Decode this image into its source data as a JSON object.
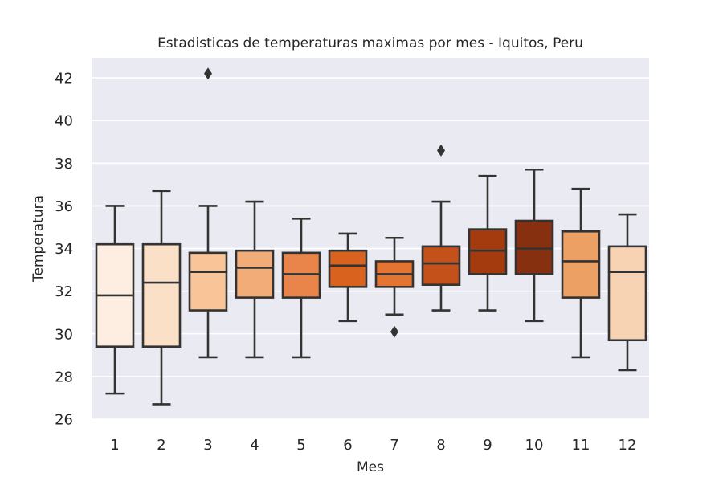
{
  "chart_data": {
    "type": "box",
    "title": "Estadisticas de temperaturas maximas por mes - Iquitos, Peru",
    "xlabel": "Mes",
    "ylabel": "Temperatura",
    "categories": [
      "1",
      "2",
      "3",
      "4",
      "5",
      "6",
      "7",
      "8",
      "9",
      "10",
      "11",
      "12"
    ],
    "ylim": [
      26,
      43
    ],
    "yticks": [
      26,
      28,
      30,
      32,
      34,
      36,
      38,
      40,
      42
    ],
    "grid": true,
    "boxes": [
      {
        "month": "1",
        "whisker_low": 27.2,
        "q1": 29.4,
        "median": 31.8,
        "q3": 34.2,
        "whisker_high": 36.0,
        "outliers": [],
        "color": "#fdeee1"
      },
      {
        "month": "2",
        "whisker_low": 26.7,
        "q1": 29.4,
        "median": 32.4,
        "q3": 34.2,
        "whisker_high": 36.7,
        "outliers": [],
        "color": "#fbe0c8"
      },
      {
        "month": "3",
        "whisker_low": 28.9,
        "q1": 31.1,
        "median": 32.9,
        "q3": 33.8,
        "whisker_high": 36.0,
        "outliers": [
          42.2
        ],
        "color": "#f8c498"
      },
      {
        "month": "4",
        "whisker_low": 28.9,
        "q1": 31.7,
        "median": 33.1,
        "q3": 33.9,
        "whisker_high": 36.2,
        "outliers": [],
        "color": "#f1ac77"
      },
      {
        "month": "5",
        "whisker_low": 28.9,
        "q1": 31.7,
        "median": 32.8,
        "q3": 33.8,
        "whisker_high": 35.4,
        "outliers": [],
        "color": "#e9844a"
      },
      {
        "month": "6",
        "whisker_low": 30.6,
        "q1": 32.2,
        "median": 33.2,
        "q3": 33.9,
        "whisker_high": 34.7,
        "outliers": [],
        "color": "#d9621e"
      },
      {
        "month": "7",
        "whisker_low": 30.9,
        "q1": 32.2,
        "median": 32.8,
        "q3": 33.4,
        "whisker_high": 34.5,
        "outliers": [
          30.1
        ],
        "color": "#e37432"
      },
      {
        "month": "8",
        "whisker_low": 31.1,
        "q1": 32.3,
        "median": 33.3,
        "q3": 34.1,
        "whisker_high": 36.2,
        "outliers": [
          38.6
        ],
        "color": "#c4501a"
      },
      {
        "month": "9",
        "whisker_low": 31.1,
        "q1": 32.8,
        "median": 33.9,
        "q3": 34.9,
        "whisker_high": 37.4,
        "outliers": [],
        "color": "#a33b0f"
      },
      {
        "month": "10",
        "whisker_low": 30.6,
        "q1": 32.8,
        "median": 34.0,
        "q3": 35.3,
        "whisker_high": 37.7,
        "outliers": [],
        "color": "#87300f"
      },
      {
        "month": "11",
        "whisker_low": 28.9,
        "q1": 31.7,
        "median": 33.4,
        "q3": 34.8,
        "whisker_high": 36.8,
        "outliers": [],
        "color": "#eca064"
      },
      {
        "month": "12",
        "whisker_low": 28.3,
        "q1": 29.7,
        "median": 32.9,
        "q3": 34.1,
        "whisker_high": 35.6,
        "outliers": [],
        "color": "#f8d3b3"
      }
    ],
    "style": {
      "plot_background": "#eaeaf2",
      "grid_color": "#ffffff",
      "line_color": "#333333"
    }
  }
}
